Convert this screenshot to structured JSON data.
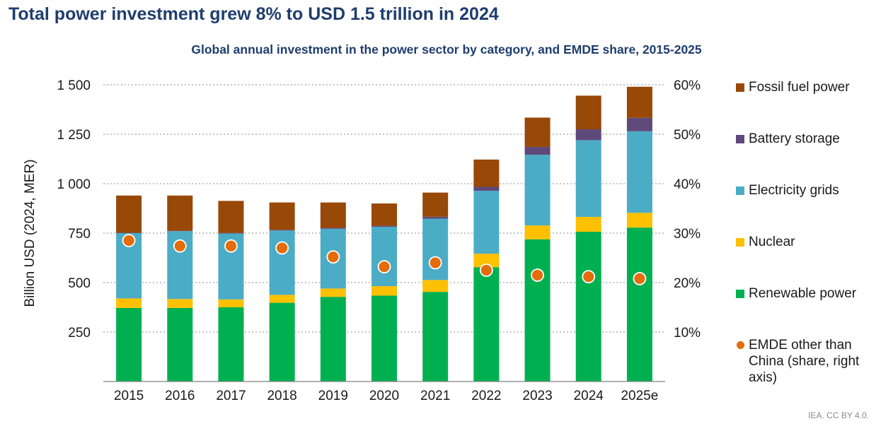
{
  "headline": "Total power investment grew 8% to USD 1.5 trillion in 2024",
  "credit": "IEA. CC BY 4.0.",
  "chart_data": {
    "type": "bar",
    "stacked": true,
    "title": "Global annual investment in the power sector by category, and EMDE share, 2015-2025",
    "ylabel": "Billion USD (2024, MER)",
    "ylim": [
      0,
      1500
    ],
    "yticks": [
      250,
      500,
      750,
      1000,
      1250,
      1500
    ],
    "ytick_labels": [
      "250",
      "500",
      "750",
      "1 000",
      "1 250",
      "1 500"
    ],
    "y2lim": [
      0,
      0.6
    ],
    "y2ticks": [
      0.1,
      0.2,
      0.3,
      0.4,
      0.5,
      0.6
    ],
    "y2tick_labels": [
      "10%",
      "20%",
      "30%",
      "40%",
      "50%",
      "60%"
    ],
    "grid": true,
    "legend_position": "right",
    "categories": [
      "2015",
      "2016",
      "2017",
      "2018",
      "2019",
      "2020",
      "2021",
      "2022",
      "2023",
      "2024",
      "2025e"
    ],
    "series": [
      {
        "name": "Renewable power",
        "color": "#00b050",
        "values": [
          372,
          372,
          375,
          398,
          428,
          434,
          453,
          578,
          719,
          757,
          778
        ]
      },
      {
        "name": "Nuclear",
        "color": "#ffc000",
        "values": [
          48,
          45,
          40,
          40,
          42,
          48,
          60,
          68,
          70,
          75,
          75
        ]
      },
      {
        "name": "Electricity grids",
        "color": "#4bacc6",
        "values": [
          330,
          343,
          333,
          325,
          302,
          300,
          310,
          318,
          357,
          388,
          412
        ]
      },
      {
        "name": "Battery storage",
        "color": "#5f497a",
        "values": [
          2,
          2,
          3,
          4,
          5,
          5,
          10,
          20,
          40,
          55,
          68
        ]
      },
      {
        "name": "Fossil fuel power",
        "color": "#984807",
        "values": [
          188,
          178,
          162,
          138,
          128,
          113,
          122,
          138,
          148,
          170,
          157
        ]
      }
    ],
    "secondary_series": {
      "name": "EMDE other than China (share, right axis)",
      "color": "#e46c0a",
      "axis": "right",
      "values": [
        0.285,
        0.274,
        0.274,
        0.27,
        0.252,
        0.232,
        0.24,
        0.225,
        0.215,
        0.212,
        0.208
      ]
    }
  }
}
